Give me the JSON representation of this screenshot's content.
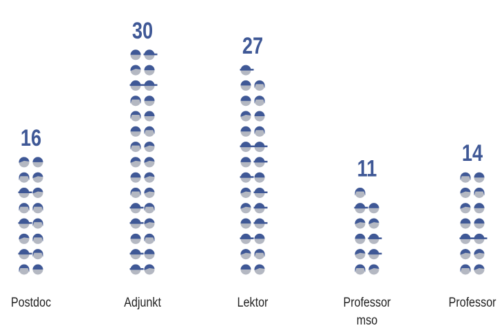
{
  "chart_data": {
    "type": "pictogram",
    "categories": [
      "Postdoc",
      "Adjunkt",
      "Lektor",
      "Professor mso",
      "Professor"
    ],
    "values": [
      16,
      30,
      27,
      11,
      14
    ],
    "color": "#3f5896"
  }
}
